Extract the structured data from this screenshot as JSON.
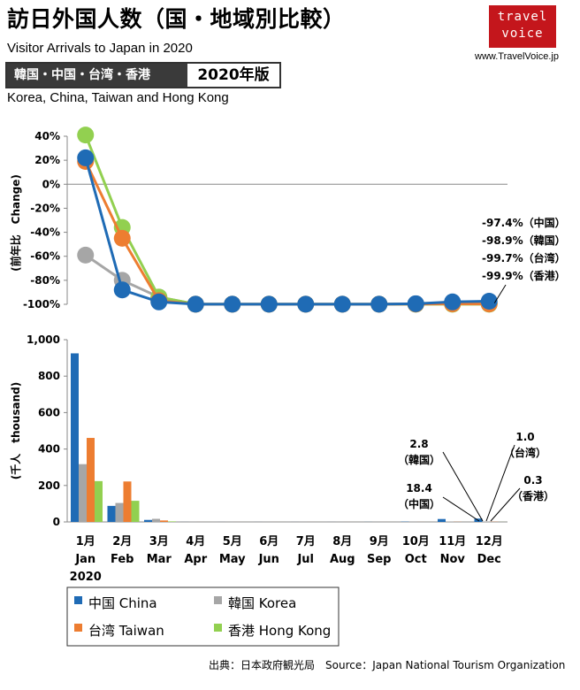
{
  "header": {
    "title": "訪日外国人数（国・地域別比較）",
    "subtitle": "Visitor Arrivals to Japan in 2020",
    "region_jp": "韓国・中国・台湾・香港",
    "edition": "2020年版",
    "region_en": "Korea, China, Taiwan and Hong Kong"
  },
  "brand": {
    "logo_line1": "travel",
    "logo_line2": "voice",
    "url": "www.TravelVoice.jp"
  },
  "source": "出典：日本政府観光局　Source：Japan  National Tourism  Organization",
  "chart_data": [
    {
      "type": "line",
      "ylabel": "(前年比　Change)",
      "ylim": [
        -100,
        40
      ],
      "yticks": [
        "40%",
        "20%",
        "0%",
        "-20%",
        "-40%",
        "-60%",
        "-80%",
        "-100%"
      ],
      "ytick_values": [
        40,
        20,
        0,
        -20,
        -40,
        -60,
        -80,
        -100
      ],
      "categories": [
        "Jan",
        "Feb",
        "Mar",
        "Apr",
        "May",
        "Jun",
        "Jul",
        "Aug",
        "Sep",
        "Oct",
        "Nov",
        "Dec"
      ],
      "series": [
        {
          "name": "韓国 Korea",
          "color": "#a6a6a6",
          "values": [
            -59,
            -80,
            -94,
            -99.9,
            -99.9,
            -99.9,
            -99.9,
            -99.9,
            -99.9,
            -99.6,
            -99.5,
            -98.9
          ]
        },
        {
          "name": "香港 Hong Kong",
          "color": "#92d050",
          "values": [
            41,
            -36,
            -94,
            -99.9,
            -99.9,
            -99.9,
            -99.9,
            -99.9,
            -99.9,
            -99.9,
            -99.9,
            -99.9
          ]
        },
        {
          "name": "台湾 Taiwan",
          "color": "#ed7d31",
          "values": [
            19,
            -45,
            -97,
            -99.9,
            -99.9,
            -99.9,
            -99.9,
            -99.9,
            -99.9,
            -99.8,
            -99.6,
            -99.7
          ]
        },
        {
          "name": "中国 China",
          "color": "#1f6bb5",
          "values": [
            22,
            -88,
            -98,
            -99.9,
            -99.9,
            -99.9,
            -99.9,
            -99.9,
            -99.9,
            -99.5,
            -98.0,
            -97.4
          ]
        }
      ],
      "annotations": [
        "-97.4%（中国）",
        "-98.9%（韓国）",
        "-99.7%（台湾）",
        "-99.9%（香港）"
      ]
    },
    {
      "type": "bar",
      "ylabel": "(千人　thousand)",
      "ylim": [
        0,
        1000
      ],
      "yticks": [
        "1,000",
        "800",
        "600",
        "400",
        "200",
        "0"
      ],
      "ytick_values": [
        1000,
        800,
        600,
        400,
        200,
        0
      ],
      "categories_jp": [
        "1月",
        "2月",
        "3月",
        "4月",
        "5月",
        "6月",
        "7月",
        "8月",
        "9月",
        "10月",
        "11月",
        "12月"
      ],
      "categories": [
        "Jan",
        "Feb",
        "Mar",
        "Apr",
        "May",
        "Jun",
        "Jul",
        "Aug",
        "Sep",
        "Oct",
        "Nov",
        "Dec"
      ],
      "year": "2020",
      "series": [
        {
          "name": "中国 China",
          "color": "#1f6bb5",
          "values": [
            925,
            88,
            11,
            0.2,
            0.1,
            0.1,
            0.1,
            0.1,
            0.3,
            1.5,
            16,
            18.4
          ]
        },
        {
          "name": "韓国 Korea",
          "color": "#a6a6a6",
          "values": [
            317,
            104,
            17,
            0.4,
            0.1,
            0.1,
            0.1,
            0.1,
            0.1,
            0.4,
            1.6,
            2.8
          ]
        },
        {
          "name": "台湾 Taiwan",
          "color": "#ed7d31",
          "values": [
            461,
            222,
            8,
            0.1,
            0.1,
            0.1,
            0.1,
            0.1,
            0.1,
            0.2,
            0.7,
            1.0
          ]
        },
        {
          "name": "香港 Hong Kong",
          "color": "#92d050",
          "values": [
            224,
            116,
            3,
            0.1,
            0.1,
            0.1,
            0.1,
            0.1,
            0.1,
            0.1,
            0.1,
            0.3
          ]
        }
      ],
      "annotations": [
        {
          "value": "18.4",
          "label": "（中国）"
        },
        {
          "value": "2.8",
          "label": "（韓国）"
        },
        {
          "value": "1.0",
          "label": "（台湾）"
        },
        {
          "value": "0.3",
          "label": "（香港）"
        }
      ]
    }
  ],
  "legend": [
    {
      "label": "中国 China",
      "color": "#1f6bb5"
    },
    {
      "label": "韓国 Korea",
      "color": "#a6a6a6"
    },
    {
      "label": "台湾 Taiwan",
      "color": "#ed7d31"
    },
    {
      "label": "香港 Hong Kong",
      "color": "#92d050"
    }
  ]
}
